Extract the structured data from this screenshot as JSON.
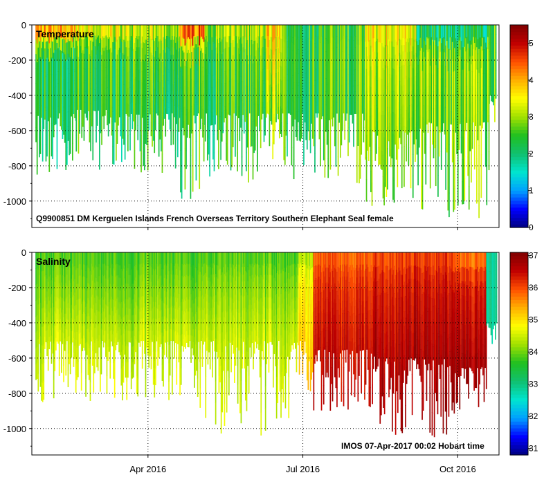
{
  "chart_data": [
    {
      "type": "heatmap",
      "title": "Temperature",
      "annotation": "Q9900851  DM  Kerguelen  Islands  French  Overseas  Territory  Southern  Elephant  Seal   female",
      "ylim": [
        -1150,
        0
      ],
      "yticks": [
        0,
        -200,
        -400,
        -600,
        -800,
        -1000
      ],
      "xrange_months": [
        1.75,
        10.8
      ],
      "xticks": [
        {
          "pos": 4,
          "label": "Apr 2016"
        },
        {
          "pos": 7,
          "label": "Jul 2016"
        },
        {
          "pos": 10,
          "label": "Oct 2016"
        }
      ],
      "colorbar": {
        "min": 0,
        "max": 5.5,
        "ticks": [
          0,
          1,
          2,
          3,
          4,
          5
        ]
      },
      "colormap": [
        "#00007f",
        "#0000ff",
        "#00a0ff",
        "#00e5d0",
        "#10c070",
        "#20c020",
        "#a0e000",
        "#ffff00",
        "#ffb000",
        "#ff5000",
        "#c00000",
        "#800000"
      ],
      "segments": [
        {
          "x0": 1.82,
          "x1": 2.6,
          "surface": 4.6,
          "mid": 2.2,
          "deep": 2.3,
          "depth_range": [
            -850,
            -500
          ]
        },
        {
          "x0": 2.6,
          "x1": 3.6,
          "surface": 3.6,
          "mid": 2.4,
          "deep": 2.3,
          "depth_range": [
            -830,
            -480
          ]
        },
        {
          "x0": 3.6,
          "x1": 4.6,
          "surface": 3.4,
          "mid": 2.6,
          "deep": 2.3,
          "depth_range": [
            -840,
            -500
          ]
        },
        {
          "x0": 4.6,
          "x1": 5.1,
          "surface": 4.9,
          "mid": 2.6,
          "deep": 2.4,
          "depth_range": [
            -1020,
            -500
          ]
        },
        {
          "x0": 5.1,
          "x1": 6.3,
          "surface": 3.2,
          "mid": 2.6,
          "deep": 2.4,
          "depth_range": [
            -900,
            -500
          ]
        },
        {
          "x0": 6.3,
          "x1": 6.6,
          "surface": 3.8,
          "mid": 3.4,
          "deep": 2.8,
          "depth_range": [
            -800,
            -500
          ]
        },
        {
          "x0": 6.6,
          "x1": 8.2,
          "surface": 2.5,
          "mid": 2.6,
          "deep": 2.5,
          "depth_range": [
            -900,
            -500
          ]
        },
        {
          "x0": 8.2,
          "x1": 9.2,
          "surface": 3.6,
          "mid": 3.2,
          "deep": 2.9,
          "depth_range": [
            -1050,
            -600
          ]
        },
        {
          "x0": 9.2,
          "x1": 10.6,
          "surface": 1.8,
          "mid": 3.0,
          "deep": 2.8,
          "depth_range": [
            -1100,
            -550
          ]
        },
        {
          "x0": 10.6,
          "x1": 10.75,
          "surface": 2.6,
          "mid": 2.6,
          "deep": 2.6,
          "depth_range": [
            -600,
            -400
          ]
        }
      ]
    },
    {
      "type": "heatmap",
      "title": "Salinity",
      "annotation": "IMOS  07-Apr-2017  00:02  Hobart  time",
      "ylim": [
        -1150,
        0
      ],
      "yticks": [
        0,
        -200,
        -400,
        -600,
        -800,
        -1000
      ],
      "xrange_months": [
        1.75,
        10.8
      ],
      "xticks": [
        {
          "pos": 4,
          "label": "Apr 2016"
        },
        {
          "pos": 7,
          "label": "Jul 2016"
        },
        {
          "pos": 10,
          "label": "Oct 2016"
        }
      ],
      "colorbar": {
        "min": 30.8,
        "max": 37.1,
        "ticks": [
          31,
          32,
          33,
          34,
          35,
          36,
          37
        ]
      },
      "colormap": [
        "#00007f",
        "#0000ff",
        "#00a0ff",
        "#00e5d0",
        "#10c070",
        "#20c020",
        "#a0e000",
        "#ffff00",
        "#ffb000",
        "#ff5000",
        "#c00000",
        "#800000"
      ],
      "segments": [
        {
          "x0": 1.82,
          "x1": 5.0,
          "surface": 33.8,
          "mid": 34.0,
          "deep": 34.6,
          "depth_range": [
            -850,
            -500
          ]
        },
        {
          "x0": 5.0,
          "x1": 6.9,
          "surface": 33.8,
          "mid": 34.1,
          "deep": 34.6,
          "depth_range": [
            -1040,
            -500
          ]
        },
        {
          "x0": 6.9,
          "x1": 7.2,
          "surface": 34.2,
          "mid": 34.8,
          "deep": 35.2,
          "depth_range": [
            -800,
            -500
          ]
        },
        {
          "x0": 7.2,
          "x1": 8.4,
          "surface": 35.8,
          "mid": 36.2,
          "deep": 36.6,
          "depth_range": [
            -900,
            -550
          ]
        },
        {
          "x0": 8.4,
          "x1": 9.9,
          "surface": 36.0,
          "mid": 36.4,
          "deep": 36.8,
          "depth_range": [
            -1050,
            -600
          ]
        },
        {
          "x0": 9.9,
          "x1": 10.55,
          "surface": 35.6,
          "mid": 36.3,
          "deep": 36.8,
          "depth_range": [
            -920,
            -650
          ]
        },
        {
          "x0": 10.55,
          "x1": 10.75,
          "surface": 32.8,
          "mid": 32.8,
          "deep": 32.8,
          "depth_range": [
            -550,
            -400
          ]
        }
      ]
    }
  ]
}
